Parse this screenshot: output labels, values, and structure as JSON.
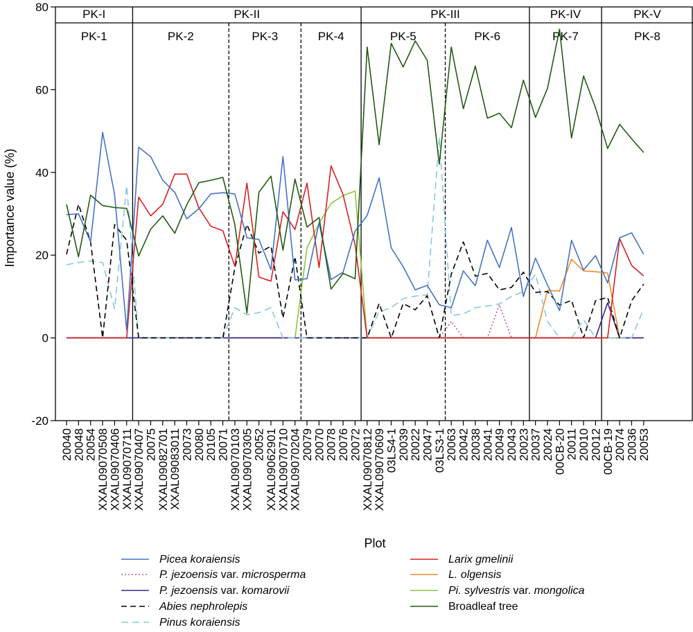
{
  "chart_data": {
    "type": "line",
    "xlabel": "Plot",
    "ylabel": "Importance value (%)",
    "ylim": [
      -20,
      80
    ],
    "yticks": [
      -20,
      0,
      20,
      40,
      60,
      80
    ],
    "categories": [
      "20040",
      "20048",
      "20054",
      "XXAL09070508",
      "XXAL09070406",
      "XXAL09070711",
      "XXAL09070407",
      "20075",
      "XXAL09082701",
      "XXAL09083011",
      "20073",
      "20080",
      "20105",
      "20071",
      "XXAL09070103",
      "XXAL09070305",
      "20052",
      "XXAL09062901",
      "XXAL09070710",
      "XXAL09070204",
      "20079",
      "20070",
      "20078",
      "20076",
      "20072",
      "XXAL09070812",
      "XXAL09070609",
      "03LS4-1",
      "20039",
      "20022",
      "20047",
      "03LS3-1",
      "20063",
      "20042",
      "20038",
      "20041",
      "20049",
      "20043",
      "20023",
      "20037",
      "20024",
      "00CB-20",
      "20011",
      "20010",
      "20012",
      "00CB-19",
      "20074",
      "20036",
      "20053"
    ],
    "top_groups": [
      {
        "label": "PK-I",
        "start": 0,
        "end": 5
      },
      {
        "label": "PK-II",
        "start": 6,
        "end": 24
      },
      {
        "label": "PK-III",
        "start": 25,
        "end": 38
      },
      {
        "label": "PK-IV",
        "start": 39,
        "end": 44
      },
      {
        "label": "PK-V",
        "start": 45,
        "end": 48
      }
    ],
    "sub_groups": [
      {
        "label": "PK-1",
        "start": 0,
        "end": 5
      },
      {
        "label": "PK-2",
        "start": 6,
        "end": 13
      },
      {
        "label": "PK-3",
        "start": 14,
        "end": 19
      },
      {
        "label": "PK-4",
        "start": 20,
        "end": 24
      },
      {
        "label": "PK-5",
        "start": 25,
        "end": 31
      },
      {
        "label": "PK-6",
        "start": 32,
        "end": 38
      },
      {
        "label": "PK-7",
        "start": 39,
        "end": 44
      },
      {
        "label": "PK-8",
        "start": 45,
        "end": 48
      }
    ],
    "separators": [
      {
        "after": 5,
        "style": "solid"
      },
      {
        "after": 13,
        "style": "dashed"
      },
      {
        "after": 19,
        "style": "dashed"
      },
      {
        "after": 24,
        "style": "solid"
      },
      {
        "after": 31,
        "style": "dashed"
      },
      {
        "after": 38,
        "style": "solid"
      },
      {
        "after": 44,
        "style": "solid"
      }
    ],
    "series": [
      {
        "name_it": "Picea koraiensis",
        "name_rest": "",
        "color": "#4472c4",
        "dash": "",
        "values": [
          29.8,
          30.0,
          23.2,
          49.7,
          34.6,
          1.8,
          46.1,
          43.8,
          38.1,
          35.2,
          28.8,
          31.2,
          34.8,
          35.1,
          34.8,
          24.2,
          23.8,
          16.5,
          43.8,
          14.0,
          14.3,
          27.8,
          14.1,
          15.9,
          25.8,
          29.6,
          38.7,
          21.8,
          17.2,
          11.6,
          12.7,
          8.0,
          7.3,
          16.2,
          12.6,
          23.6,
          17.0,
          26.7,
          10.0,
          19.3,
          12.8,
          6.6,
          23.6,
          16.4,
          19.9,
          13.3,
          24.2,
          25.4,
          20.2
        ]
      },
      {
        "name_it": "P.  jezoensis",
        "name_rest": " var. ",
        "name_it2": "microsperma",
        "color": "#c050a0",
        "dash": "2,3",
        "values": [
          0,
          0,
          0,
          0,
          0,
          0,
          0,
          0,
          0,
          0,
          0,
          0,
          0,
          0,
          0,
          0,
          0,
          0,
          0,
          0,
          0,
          0,
          0,
          0,
          0,
          0,
          0,
          0,
          0,
          0,
          0,
          0,
          4.0,
          0,
          0,
          0,
          8.0,
          0,
          0,
          0,
          0,
          0,
          0,
          0,
          0,
          0,
          0,
          0,
          0
        ]
      },
      {
        "name_it": "P. jezoensis",
        "name_rest": " var. ",
        "name_it2": "komarovii",
        "color": "#3a2496",
        "dash": "",
        "values": [
          0,
          0,
          0,
          0,
          0,
          0,
          0,
          0,
          0,
          0,
          0,
          0,
          0,
          0,
          0,
          0,
          0,
          0,
          0,
          0,
          0,
          0,
          0,
          0,
          0,
          0,
          0,
          0,
          0,
          0,
          0,
          0,
          0,
          0,
          0,
          0,
          0,
          0,
          0,
          0,
          0,
          0,
          0,
          0,
          0,
          8.5,
          0,
          0,
          0
        ]
      },
      {
        "name_it": "Abies nephrolepis",
        "name_rest": "",
        "color": "#000000",
        "dash": "8,5",
        "values": [
          20.2,
          32.3,
          23.2,
          0,
          27.4,
          23.6,
          0,
          0,
          0,
          0,
          0,
          0,
          0,
          0,
          17.0,
          27.4,
          20.5,
          22.2,
          4.8,
          19.6,
          0,
          0,
          0,
          0,
          0,
          0,
          8.3,
          0,
          8.3,
          6.8,
          10.2,
          0,
          15.4,
          23.2,
          14.9,
          15.6,
          11.6,
          12.2,
          15.9,
          11.0,
          11.2,
          7.9,
          9.1,
          0,
          9.0,
          9.8,
          0,
          9.0,
          13.0
        ]
      },
      {
        "name_it": "Pinus koraiensis",
        "name_rest": "",
        "color": "#88c7dd",
        "dash": "10,6",
        "values": [
          17.7,
          18.2,
          18.6,
          18.2,
          7.0,
          36.8,
          0,
          0,
          0,
          0,
          0,
          0,
          0,
          0,
          7.3,
          5.6,
          6.1,
          7.3,
          0,
          0,
          0,
          0,
          0,
          0,
          0,
          0,
          6.3,
          7.3,
          9.5,
          10.1,
          10.4,
          48.5,
          5.4,
          5.8,
          7.3,
          7.7,
          8.2,
          10.0,
          11.2,
          15.4,
          4.0,
          0,
          0,
          4.4,
          0,
          0,
          0,
          0,
          7.0
        ]
      },
      {
        "name_it": "Larix gmelinii",
        "name_rest": "",
        "color": "#d62020",
        "dash": "",
        "values": [
          0,
          0,
          0,
          0,
          0,
          0,
          34.0,
          29.5,
          32.3,
          39.6,
          39.6,
          31.4,
          27.0,
          25.9,
          17.3,
          37.4,
          14.7,
          13.7,
          30.5,
          26.2,
          37.4,
          17.0,
          41.6,
          34.6,
          22.5,
          0,
          0,
          0,
          0,
          0,
          0,
          0,
          0,
          0,
          0,
          0,
          0,
          0,
          0,
          0,
          0,
          0,
          0,
          0,
          0,
          0,
          24.0,
          17.5,
          15.0
        ]
      },
      {
        "name_it": "L. olgensis",
        "name_rest": "",
        "color": "#f08a28",
        "dash": "",
        "values": [
          0,
          0,
          0,
          0,
          0,
          0,
          0,
          0,
          0,
          0,
          0,
          0,
          0,
          0,
          0,
          0,
          0,
          0,
          0,
          0,
          0,
          0,
          0,
          0,
          0,
          0,
          0,
          0,
          0,
          0,
          0,
          0,
          0,
          0,
          0,
          0,
          0,
          0,
          0,
          0,
          11.5,
          11.3,
          19.0,
          16.2,
          16.0,
          15.7,
          0,
          0,
          0
        ]
      },
      {
        "name_it": "Pi. sylvestris",
        "name_rest": " var. ",
        "name_it2": "mongolica",
        "color": "#8cc63a",
        "dash": "",
        "values": [
          0,
          0,
          0,
          0,
          0,
          0,
          0,
          0,
          0,
          0,
          0,
          0,
          0,
          0,
          0,
          0,
          0,
          0,
          0,
          0,
          21.8,
          27.7,
          32.5,
          34.4,
          35.5,
          0,
          0,
          0,
          0,
          0,
          0,
          0,
          0,
          0,
          0,
          0,
          0,
          0,
          0,
          0,
          0,
          0,
          0,
          0,
          0,
          0,
          0,
          0,
          0
        ]
      },
      {
        "name_it": "",
        "name_rest": "Broadleaf tree",
        "color": "#1f5a12",
        "dash": "",
        "values": [
          32.3,
          19.6,
          34.5,
          32.0,
          31.5,
          31.3,
          19.8,
          26.3,
          29.5,
          25.3,
          32.2,
          37.5,
          38.1,
          38.8,
          27.4,
          6.0,
          35.2,
          39.1,
          21.2,
          38.4,
          26.8,
          29.1,
          11.8,
          15.6,
          14.3,
          70.3,
          46.7,
          71.2,
          65.5,
          71.8,
          67.1,
          42.0,
          70.3,
          55.4,
          65.7,
          53.1,
          54.3,
          50.8,
          62.3,
          53.3,
          60.3,
          74.6,
          48.3,
          63.3,
          55.6,
          45.8,
          51.6,
          48.1,
          44.8
        ]
      }
    ]
  }
}
